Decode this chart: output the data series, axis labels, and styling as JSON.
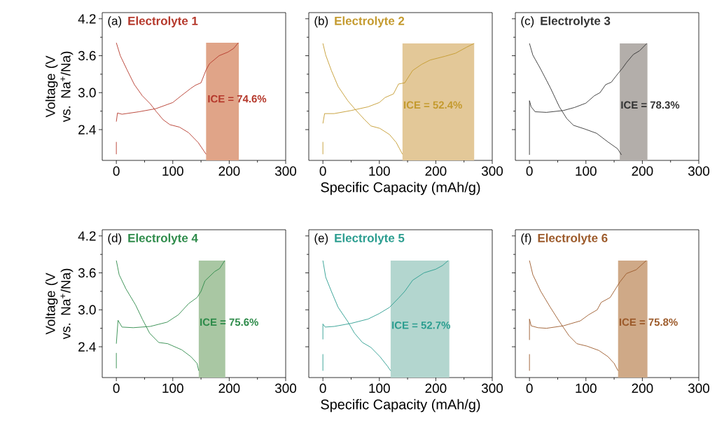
{
  "chart_data": [
    {
      "type": "line",
      "title": "Electrolyte 1",
      "ylabel": "Voltage (V vs. Na$^{+}$/Na)",
      "xlim": [
        -25,
        300
      ],
      "ylim": [
        1.9,
        4.3
      ],
      "xticks": [
        0,
        100,
        200,
        300
      ],
      "yticks": [
        2.4,
        {
          "value": 3.0,
          "label": "3.0"
        },
        3.6,
        4.2
      ],
      "annotations": [
        "(a)",
        {
          "text": "ICE = 74.6%",
          "x": 160,
          "y": 2.9
        }
      ],
      "bands": [
        {
          "axis": "x",
          "from": 159,
          "to": 217,
          "color": "#e0a488"
        }
      ],
      "series": [
        {
          "color": "#b5382b",
          "x": [
            0,
            7,
            19,
            32,
            46,
            60,
            71,
            83,
            95,
            112,
            128,
            145,
            159
          ],
          "values": [
            3.81,
            3.6,
            3.37,
            3.13,
            2.95,
            2.82,
            2.69,
            2.56,
            2.48,
            2.44,
            2.35,
            2.19,
            2.0
          ]
        },
        {
          "color": "#b5382b",
          "x": [
            0,
            0,
            null,
            0,
            2,
            10,
            40,
            70,
            100,
            115,
            132,
            140,
            150,
            159,
            165,
            182,
            198,
            208,
            216
          ],
          "values": [
            2.0,
            2.2,
            null,
            2.53,
            2.67,
            2.65,
            2.69,
            2.74,
            2.84,
            2.95,
            3.07,
            3.12,
            3.16,
            3.37,
            3.47,
            3.6,
            3.66,
            3.72,
            3.81
          ]
        }
      ]
    },
    {
      "type": "line",
      "title": "Electrolyte 2",
      "xlabel": "Specific Capacity (mAh/g)",
      "tick_labels": "x",
      "xlim": [
        -25,
        300
      ],
      "ylim": [
        1.9,
        4.3
      ],
      "xticks": [
        0,
        100,
        200,
        300
      ],
      "yticks": [
        2.4,
        3,
        3.6,
        4.2
      ],
      "annotations": [
        "(b)",
        {
          "text": "ICE = 52.4%",
          "x": 141,
          "y": 2.8
        }
      ],
      "bands": [
        {
          "axis": "x",
          "from": 141,
          "to": 268,
          "color": "#e3c898"
        }
      ],
      "series": [
        {
          "color": "#c49a2e",
          "x": [
            0,
            5,
            15,
            27,
            44,
            58,
            73,
            85,
            101,
            118,
            130,
            141
          ],
          "values": [
            3.8,
            3.61,
            3.36,
            3.1,
            2.87,
            2.72,
            2.57,
            2.46,
            2.42,
            2.32,
            2.19,
            2.0
          ]
        },
        {
          "color": "#c49a2e",
          "x": [
            0,
            0,
            null,
            0,
            3,
            20,
            50,
            80,
            100,
            110,
            125,
            134,
            145,
            159,
            175,
            190,
            216,
            235,
            255,
            268
          ],
          "values": [
            2.0,
            2.2,
            null,
            2.5,
            2.66,
            2.66,
            2.71,
            2.77,
            2.84,
            2.92,
            2.98,
            3.14,
            3.16,
            3.36,
            3.46,
            3.53,
            3.59,
            3.64,
            3.74,
            3.8
          ]
        }
      ]
    },
    {
      "type": "line",
      "title": "Electrolyte 3",
      "tick_labels": "x",
      "xlim": [
        -25,
        300
      ],
      "ylim": [
        1.9,
        4.3
      ],
      "xticks": [
        0,
        100,
        200,
        300
      ],
      "yticks": [
        2.4,
        3,
        3.6,
        4.2
      ],
      "annotations": [
        "(c)",
        {
          "text": "ICE = 78.3%",
          "x": 160,
          "y": 2.8
        }
      ],
      "bands": [
        {
          "axis": "x",
          "from": 160,
          "to": 209,
          "color": "#b3aeaa"
        }
      ],
      "series": [
        {
          "color": "#333333",
          "x": [
            0,
            6,
            20,
            37,
            53,
            66,
            78,
            98,
            119,
            139,
            156,
            163
          ],
          "values": [
            3.8,
            3.61,
            3.38,
            3.08,
            2.77,
            2.58,
            2.47,
            2.41,
            2.34,
            2.2,
            2.09,
            1.99
          ]
        },
        {
          "color": "#333333",
          "x": [
            0,
            0,
            3,
            10,
            30,
            60,
            80,
            100,
            115,
            125,
            135,
            145,
            156,
            165,
            172,
            184,
            195,
            208
          ],
          "values": [
            1.99,
            2.87,
            2.77,
            2.69,
            2.68,
            2.71,
            2.76,
            2.83,
            2.95,
            3.0,
            3.13,
            3.17,
            3.3,
            3.4,
            3.49,
            3.62,
            3.68,
            3.8
          ]
        }
      ]
    },
    {
      "type": "line",
      "title": "Electrolyte 4",
      "ylabel": "Voltage (V vs. Na$^{+}$/Na)",
      "xlim": [
        -25,
        300
      ],
      "ylim": [
        1.9,
        4.3
      ],
      "xticks": [
        0,
        100,
        200,
        300
      ],
      "yticks": [
        2.4,
        {
          "value": 3.0,
          "label": "3.0"
        },
        3.6,
        4.2
      ],
      "annotations": [
        "(d)",
        {
          "text": "ICE = 75.6%",
          "x": 146,
          "y": 2.8
        }
      ],
      "bands": [
        {
          "axis": "x",
          "from": 146,
          "to": 193,
          "color": "#a9c7a3"
        }
      ],
      "series": [
        {
          "color": "#2e8b4a",
          "x": [
            0,
            5,
            17,
            34,
            46,
            59,
            75,
            91,
            116,
            132,
            143,
            146
          ],
          "values": [
            3.8,
            3.57,
            3.34,
            3.08,
            2.85,
            2.62,
            2.47,
            2.45,
            2.35,
            2.24,
            2.13,
            2.01
          ]
        },
        {
          "color": "#2e8b4a",
          "x": [
            0,
            0,
            null,
            0,
            3,
            10,
            30,
            60,
            90,
            110,
            128,
            143,
            150,
            157,
            174,
            183,
            192
          ],
          "values": [
            2.05,
            2.3,
            null,
            2.45,
            2.83,
            2.72,
            2.71,
            2.73,
            2.8,
            2.92,
            3.1,
            3.2,
            3.3,
            3.47,
            3.62,
            3.67,
            3.8
          ]
        }
      ]
    },
    {
      "type": "line",
      "title": "Electrolyte 5",
      "xlabel": "Specific Capacity (mAh/g)",
      "tick_labels": "x",
      "xlim": [
        -25,
        300
      ],
      "ylim": [
        1.9,
        4.3
      ],
      "xticks": [
        0,
        100,
        200,
        300
      ],
      "yticks": [
        2.4,
        3,
        3.6,
        4.2
      ],
      "annotations": [
        "(e)",
        {
          "text": "ICE = 52.7%",
          "x": 120,
          "y": 2.75
        }
      ],
      "bands": [
        {
          "axis": "x",
          "from": 120,
          "to": 224,
          "color": "#b3d6cf"
        }
      ],
      "series": [
        {
          "color": "#2a9d8f",
          "x": [
            0,
            5,
            15,
            27,
            44,
            56,
            70,
            85,
            101,
            114,
            120
          ],
          "values": [
            3.8,
            3.53,
            3.3,
            3.04,
            2.81,
            2.62,
            2.47,
            2.39,
            2.24,
            2.09,
            2.01
          ]
        },
        {
          "color": "#2a9d8f",
          "x": [
            0,
            0,
            null,
            0,
            0,
            4,
            20,
            50,
            80,
            100,
            118,
            134,
            145,
            159,
            179,
            200,
            212,
            222
          ],
          "values": [
            2.01,
            2.28,
            null,
            2.52,
            2.77,
            2.72,
            2.73,
            2.78,
            2.85,
            2.94,
            3.04,
            3.19,
            3.3,
            3.48,
            3.6,
            3.66,
            3.72,
            3.8
          ]
        }
      ]
    },
    {
      "type": "line",
      "title": "Electrolyte 6",
      "tick_labels": "x",
      "xlim": [
        -25,
        300
      ],
      "ylim": [
        1.9,
        4.3
      ],
      "xticks": [
        0,
        100,
        200,
        300
      ],
      "yticks": [
        2.4,
        3,
        3.6,
        4.2
      ],
      "annotations": [
        "(f)",
        {
          "text": "ICE = 75.8%",
          "x": 157,
          "y": 2.8
        }
      ],
      "bands": [
        {
          "axis": "x",
          "from": 157,
          "to": 209,
          "color": "#cfa987"
        }
      ],
      "series": [
        {
          "color": "#9c5a2a",
          "x": [
            0,
            6,
            20,
            37,
            53,
            70,
            84,
            102,
            123,
            139,
            150,
            157
          ],
          "values": [
            3.8,
            3.57,
            3.3,
            3.04,
            2.81,
            2.58,
            2.45,
            2.41,
            2.34,
            2.24,
            2.13,
            2.01
          ]
        },
        {
          "color": "#9c5a2a",
          "x": [
            0,
            0,
            null,
            0,
            0,
            3,
            15,
            30,
            60,
            90,
            105,
            120,
            127,
            143,
            160,
            172,
            189,
            207
          ],
          "values": [
            2.01,
            2.28,
            null,
            2.51,
            2.85,
            2.74,
            2.71,
            2.7,
            2.74,
            2.82,
            2.92,
            3.0,
            3.12,
            3.2,
            3.45,
            3.59,
            3.65,
            3.8
          ]
        }
      ]
    }
  ]
}
